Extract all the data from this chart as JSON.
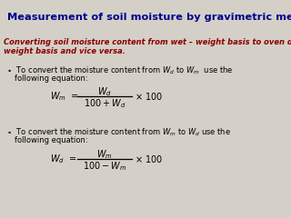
{
  "background_color": "#d4d0c8",
  "title": "Measurement of soil moisture by gravimetric method",
  "title_color": "#00008b",
  "subtitle_line1": "Converting soil moisture content from wet – weight basis to oven dry-",
  "subtitle_line2": "weight basis and vice versa.",
  "subtitle_color": "#8b0000",
  "body_color": "#000000",
  "formula_color": "#000000",
  "fig_width": 3.2,
  "fig_height": 2.4,
  "dpi": 100
}
